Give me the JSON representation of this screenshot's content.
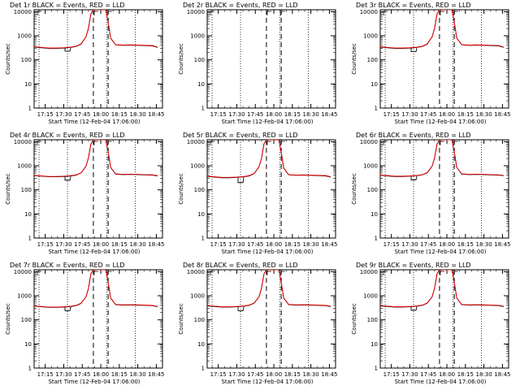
{
  "shared": {
    "xlabel": "Start Time (12-Feb-04 17:06:00)",
    "ylabel": "Counts/sec",
    "x_ticks": [
      "17:15",
      "17:30",
      "17:45",
      "18:00",
      "18:15",
      "18:30",
      "18:45"
    ],
    "y_ticks": [
      "1",
      "10",
      "100",
      "1000",
      "10000"
    ],
    "colors": {
      "events": "#000000",
      "lld": "#ff0000",
      "frame": "#000000"
    }
  },
  "chart_data": [
    {
      "type": "line",
      "title": "Det 1r BLACK = Events, RED = LLD",
      "ylim": [
        1,
        12000
      ],
      "log_y": true,
      "xlim": [
        "17:06",
        "18:50"
      ],
      "x": [
        "17:06",
        "17:12",
        "17:18",
        "17:24",
        "17:30",
        "17:36",
        "17:40",
        "17:44",
        "17:48",
        "17:50",
        "17:52",
        "17:54",
        "17:56",
        "18:02",
        "18:04",
        "18:06",
        "18:08",
        "18:12",
        "18:18",
        "18:24",
        "18:30",
        "18:36",
        "18:42",
        "18:46"
      ],
      "series": [
        {
          "name": "BLACK = Events",
          "values": [
            340,
            320,
            300,
            300,
            310,
            330,
            360,
            450,
            900,
            2000,
            8000,
            12000,
            12000,
            12000,
            12000,
            3500,
            800,
            420,
            400,
            410,
            400,
            390,
            380,
            330
          ],
          "dip": {
            "at": "17:33",
            "value": 230
          }
        },
        {
          "name": "RED = LLD",
          "values": [
            350,
            330,
            310,
            310,
            320,
            340,
            370,
            460,
            900,
            2000,
            8000,
            12000,
            12000,
            12000,
            12000,
            3500,
            800,
            430,
            410,
            420,
            410,
            400,
            390,
            340
          ]
        }
      ],
      "markers": {
        "dotted": [
          "17:10",
          "17:33",
          "18:05",
          "18:28"
        ],
        "dashed": [
          "17:54",
          "18:06"
        ]
      },
      "enabled": true
    },
    {
      "type": "line",
      "title": "Det 2r BLACK = Events, RED = LLD",
      "ylim": [
        1,
        12000
      ],
      "log_y": true,
      "xlim": [
        "17:06",
        "18:50"
      ],
      "x": [],
      "series": [],
      "markers": {
        "dotted": [
          "17:10",
          "17:33",
          "18:05",
          "18:28"
        ],
        "dashed": [
          "17:54",
          "18:06"
        ]
      },
      "enabled": false
    },
    {
      "type": "line",
      "title": "Det 3r BLACK = Events, RED = LLD",
      "ylim": [
        1,
        12000
      ],
      "log_y": true,
      "xlim": [
        "17:06",
        "18:50"
      ],
      "x": [
        "17:06",
        "17:12",
        "17:18",
        "17:24",
        "17:30",
        "17:36",
        "17:40",
        "17:44",
        "17:48",
        "17:50",
        "17:52",
        "17:54",
        "17:56",
        "18:02",
        "18:04",
        "18:06",
        "18:08",
        "18:12",
        "18:18",
        "18:24",
        "18:30",
        "18:36",
        "18:42",
        "18:46"
      ],
      "series": [
        {
          "name": "BLACK = Events",
          "values": [
            340,
            320,
            300,
            300,
            310,
            330,
            360,
            450,
            900,
            2000,
            8000,
            12000,
            12000,
            12000,
            12000,
            3500,
            800,
            420,
            400,
            410,
            400,
            390,
            380,
            330
          ],
          "dip": {
            "at": "17:33",
            "value": 220
          }
        },
        {
          "name": "RED = LLD",
          "values": [
            350,
            330,
            310,
            310,
            320,
            340,
            370,
            460,
            900,
            2000,
            8000,
            12000,
            12000,
            12000,
            12000,
            3500,
            800,
            430,
            410,
            420,
            410,
            400,
            390,
            340
          ]
        }
      ],
      "markers": {
        "dotted": [
          "17:10",
          "17:33",
          "18:05",
          "18:28"
        ],
        "dashed": [
          "17:54",
          "18:06"
        ]
      },
      "enabled": true
    },
    {
      "type": "line",
      "title": "Det 4r BLACK = Events, RED = LLD",
      "ylim": [
        1,
        12000
      ],
      "log_y": true,
      "xlim": [
        "17:06",
        "18:50"
      ],
      "x": [
        "17:06",
        "17:12",
        "17:18",
        "17:24",
        "17:30",
        "17:36",
        "17:40",
        "17:44",
        "17:48",
        "17:50",
        "17:52",
        "17:54",
        "17:56",
        "18:02",
        "18:04",
        "18:06",
        "18:08",
        "18:12",
        "18:18",
        "18:24",
        "18:30",
        "18:36",
        "18:42",
        "18:46"
      ],
      "series": [
        {
          "name": "BLACK = Events",
          "values": [
            390,
            370,
            350,
            350,
            360,
            380,
            410,
            500,
            950,
            2100,
            8000,
            12000,
            12000,
            12000,
            12000,
            3600,
            850,
            450,
            430,
            440,
            430,
            420,
            410,
            380
          ],
          "dip": {
            "at": "17:33",
            "value": 250
          }
        },
        {
          "name": "RED = LLD",
          "values": [
            400,
            380,
            360,
            360,
            370,
            390,
            420,
            510,
            950,
            2100,
            8000,
            12000,
            12000,
            12000,
            12000,
            3600,
            850,
            460,
            440,
            450,
            440,
            430,
            420,
            390
          ]
        }
      ],
      "markers": {
        "dotted": [
          "17:10",
          "17:33",
          "18:05",
          "18:28"
        ],
        "dashed": [
          "17:54",
          "18:06"
        ]
      },
      "enabled": true
    },
    {
      "type": "line",
      "title": "Det 5r BLACK = Events, RED = LLD",
      "ylim": [
        1,
        12000
      ],
      "log_y": true,
      "xlim": [
        "17:06",
        "18:50"
      ],
      "x": [
        "17:06",
        "17:12",
        "17:18",
        "17:24",
        "17:30",
        "17:36",
        "17:40",
        "17:44",
        "17:48",
        "17:50",
        "17:52",
        "17:54",
        "17:56",
        "18:02",
        "18:04",
        "18:06",
        "18:08",
        "18:12",
        "18:18",
        "18:24",
        "18:30",
        "18:36",
        "18:42",
        "18:46"
      ],
      "series": [
        {
          "name": "BLACK = Events",
          "values": [
            360,
            340,
            320,
            320,
            330,
            350,
            380,
            470,
            900,
            2000,
            8000,
            12000,
            12000,
            12000,
            12000,
            3500,
            800,
            420,
            400,
            410,
            400,
            390,
            380,
            340
          ],
          "dip": {
            "at": "17:33",
            "value": 200
          }
        },
        {
          "name": "RED = LLD",
          "values": [
            370,
            350,
            330,
            330,
            340,
            360,
            390,
            480,
            900,
            2000,
            8000,
            12000,
            12000,
            12000,
            12000,
            3500,
            800,
            430,
            410,
            420,
            410,
            400,
            390,
            350
          ]
        }
      ],
      "markers": {
        "dotted": [
          "17:10",
          "17:33",
          "18:05",
          "18:28"
        ],
        "dashed": [
          "17:54",
          "18:06"
        ]
      },
      "enabled": true
    },
    {
      "type": "line",
      "title": "Det 6r BLACK = Events, RED = LLD",
      "ylim": [
        1,
        12000
      ],
      "log_y": true,
      "xlim": [
        "17:06",
        "18:50"
      ],
      "x": [
        "17:06",
        "17:12",
        "17:18",
        "17:24",
        "17:30",
        "17:36",
        "17:40",
        "17:44",
        "17:48",
        "17:50",
        "17:52",
        "17:54",
        "17:56",
        "18:02",
        "18:04",
        "18:06",
        "18:08",
        "18:12",
        "18:18",
        "18:24",
        "18:30",
        "18:36",
        "18:42",
        "18:46"
      ],
      "series": [
        {
          "name": "BLACK = Events",
          "values": [
            400,
            380,
            360,
            360,
            370,
            390,
            420,
            510,
            950,
            2100,
            8000,
            12000,
            12000,
            12000,
            12000,
            3600,
            850,
            450,
            430,
            440,
            430,
            420,
            410,
            390
          ],
          "dip": {
            "at": "17:33",
            "value": 260
          }
        },
        {
          "name": "RED = LLD",
          "values": [
            410,
            390,
            370,
            370,
            380,
            400,
            430,
            520,
            950,
            2100,
            8000,
            12000,
            12000,
            12000,
            12000,
            3600,
            850,
            460,
            440,
            450,
            440,
            430,
            420,
            400
          ]
        }
      ],
      "markers": {
        "dotted": [
          "17:10",
          "17:33",
          "18:05",
          "18:28"
        ],
        "dashed": [
          "17:54",
          "18:06"
        ]
      },
      "enabled": true
    },
    {
      "type": "line",
      "title": "Det 7r BLACK = Events, RED = LLD",
      "ylim": [
        1,
        12000
      ],
      "log_y": true,
      "xlim": [
        "17:06",
        "18:50"
      ],
      "x": [
        "17:06",
        "17:12",
        "17:18",
        "17:24",
        "17:30",
        "17:36",
        "17:40",
        "17:44",
        "17:48",
        "17:50",
        "17:52",
        "17:54",
        "17:56",
        "18:02",
        "18:04",
        "18:06",
        "18:08",
        "18:12",
        "18:18",
        "18:24",
        "18:30",
        "18:36",
        "18:42",
        "18:46"
      ],
      "series": [
        {
          "name": "BLACK = Events",
          "values": [
            370,
            350,
            330,
            330,
            340,
            360,
            390,
            480,
            900,
            2000,
            8000,
            12000,
            12000,
            12000,
            12000,
            3500,
            800,
            430,
            410,
            420,
            410,
            400,
            390,
            350
          ],
          "dip": {
            "at": "17:33",
            "value": 240
          }
        },
        {
          "name": "RED = LLD",
          "values": [
            380,
            360,
            340,
            340,
            350,
            370,
            400,
            490,
            900,
            2000,
            8000,
            12000,
            12000,
            12000,
            12000,
            3500,
            800,
            440,
            420,
            430,
            420,
            410,
            400,
            360
          ]
        }
      ],
      "markers": {
        "dotted": [
          "17:10",
          "17:33",
          "18:05",
          "18:28"
        ],
        "dashed": [
          "17:54",
          "18:06"
        ]
      },
      "enabled": true
    },
    {
      "type": "line",
      "title": "Det 8r BLACK = Events, RED = LLD",
      "ylim": [
        1,
        12000
      ],
      "log_y": true,
      "xlim": [
        "17:06",
        "18:50"
      ],
      "x": [
        "17:06",
        "17:12",
        "17:18",
        "17:24",
        "17:30",
        "17:36",
        "17:40",
        "17:44",
        "17:48",
        "17:50",
        "17:52",
        "17:54",
        "17:56",
        "18:02",
        "18:04",
        "18:06",
        "18:08",
        "18:12",
        "18:18",
        "18:24",
        "18:30",
        "18:36",
        "18:42",
        "18:46"
      ],
      "series": [
        {
          "name": "BLACK = Events",
          "values": [
            380,
            360,
            340,
            340,
            350,
            370,
            400,
            490,
            900,
            2000,
            8000,
            12000,
            12000,
            12000,
            12000,
            3500,
            800,
            430,
            410,
            420,
            410,
            400,
            390,
            360
          ],
          "dip": {
            "at": "17:33",
            "value": 240
          }
        },
        {
          "name": "RED = LLD",
          "values": [
            390,
            370,
            350,
            350,
            360,
            380,
            410,
            500,
            900,
            2000,
            8000,
            12000,
            12000,
            12000,
            12000,
            3500,
            800,
            440,
            420,
            430,
            420,
            410,
            400,
            370
          ]
        }
      ],
      "markers": {
        "dotted": [
          "17:10",
          "17:33",
          "18:05",
          "18:28"
        ],
        "dashed": [
          "17:54",
          "18:06"
        ]
      },
      "enabled": true
    },
    {
      "type": "line",
      "title": "Det 9r BLACK = Events, RED = LLD",
      "ylim": [
        1,
        12000
      ],
      "log_y": true,
      "xlim": [
        "17:06",
        "18:50"
      ],
      "x": [
        "17:06",
        "17:12",
        "17:18",
        "17:24",
        "17:30",
        "17:36",
        "17:40",
        "17:44",
        "17:48",
        "17:50",
        "17:52",
        "17:54",
        "17:56",
        "18:02",
        "18:04",
        "18:06",
        "18:08",
        "18:12",
        "18:18",
        "18:24",
        "18:30",
        "18:36",
        "18:42",
        "18:46"
      ],
      "series": [
        {
          "name": "BLACK = Events",
          "values": [
            380,
            360,
            340,
            340,
            350,
            370,
            400,
            490,
            900,
            2000,
            8000,
            12000,
            12000,
            12000,
            12000,
            3500,
            800,
            430,
            410,
            420,
            410,
            400,
            390,
            360
          ],
          "dip": {
            "at": "17:33",
            "value": 250
          }
        },
        {
          "name": "RED = LLD",
          "values": [
            390,
            370,
            350,
            350,
            360,
            380,
            410,
            500,
            900,
            2000,
            8000,
            12000,
            12000,
            12000,
            12000,
            3500,
            800,
            440,
            420,
            430,
            420,
            410,
            400,
            370
          ]
        }
      ],
      "markers": {
        "dotted": [
          "17:10",
          "17:33",
          "18:05",
          "18:28"
        ],
        "dashed": [
          "17:54",
          "18:06"
        ]
      },
      "enabled": true
    }
  ]
}
